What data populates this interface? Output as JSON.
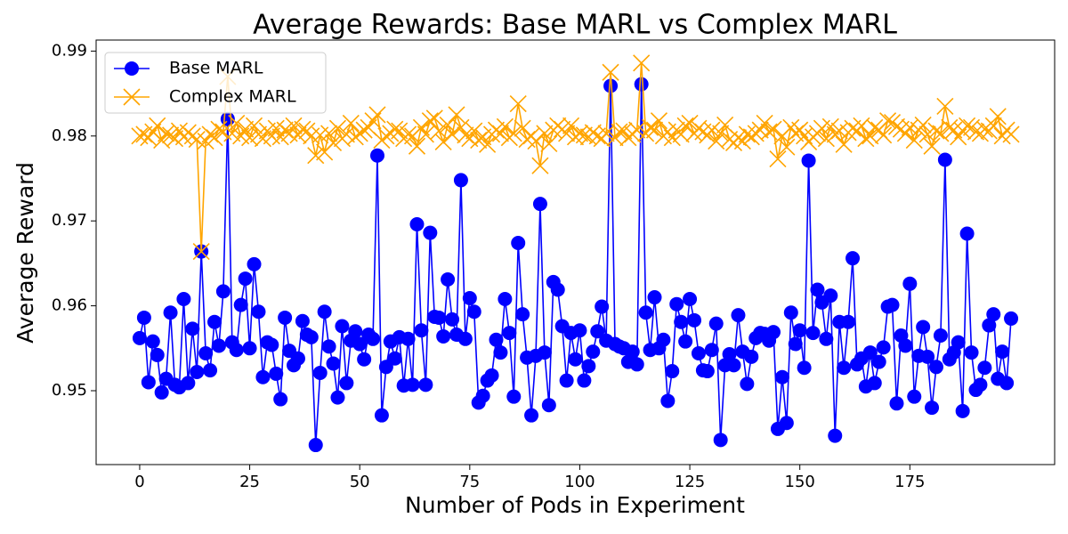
{
  "chart_data": {
    "type": "line",
    "title": "Average Rewards: Base MARL vs Complex MARL",
    "x_label": "Number of Pods in Experiment",
    "y_label": "Average Reward",
    "x": [
      0,
      1,
      2,
      3,
      4,
      5,
      6,
      7,
      8,
      9,
      10,
      11,
      12,
      13,
      14,
      15,
      16,
      17,
      18,
      19,
      20,
      21,
      22,
      23,
      24,
      25,
      26,
      27,
      28,
      29,
      30,
      31,
      32,
      33,
      34,
      35,
      36,
      37,
      38,
      39,
      40,
      41,
      42,
      43,
      44,
      45,
      46,
      47,
      48,
      49,
      50,
      51,
      52,
      53,
      54,
      55,
      56,
      57,
      58,
      59,
      60,
      61,
      62,
      63,
      64,
      65,
      66,
      67,
      68,
      69,
      70,
      71,
      72,
      73,
      74,
      75,
      76,
      77,
      78,
      79,
      80,
      81,
      82,
      83,
      84,
      85,
      86,
      87,
      88,
      89,
      90,
      91,
      92,
      93,
      94,
      95,
      96,
      97,
      98,
      99,
      100,
      101,
      102,
      103,
      104,
      105,
      106,
      107,
      108,
      109,
      110,
      111,
      112,
      113,
      114,
      115,
      116,
      117,
      118,
      119,
      120,
      121,
      122,
      123,
      124,
      125,
      126,
      127,
      128,
      129,
      130,
      131,
      132,
      133,
      134,
      135,
      136,
      137,
      138,
      139,
      140,
      141,
      142,
      143,
      144,
      145,
      146,
      147,
      148,
      149,
      150,
      151,
      152,
      153,
      154,
      155,
      156,
      157,
      158,
      159,
      160,
      161,
      162,
      163,
      164,
      165,
      166,
      167,
      168,
      169,
      170,
      171,
      172,
      173,
      174,
      175,
      176,
      177,
      178,
      179,
      180,
      181,
      182,
      183,
      184,
      185,
      186,
      187,
      188,
      189,
      190,
      191,
      192,
      193,
      194,
      195,
      196,
      197,
      198
    ],
    "series": [
      {
        "name": "Base MARL",
        "color": "#0000ff",
        "marker": "circle",
        "values": [
          0.9562,
          0.9586,
          0.951,
          0.9558,
          0.9542,
          0.9498,
          0.9514,
          0.9592,
          0.9507,
          0.9504,
          0.9608,
          0.9509,
          0.9573,
          0.9522,
          0.9664,
          0.9544,
          0.9524,
          0.9581,
          0.9553,
          0.9617,
          0.982,
          0.9557,
          0.9548,
          0.9601,
          0.9632,
          0.955,
          0.9649,
          0.9593,
          0.9516,
          0.9557,
          0.9554,
          0.952,
          0.949,
          0.9586,
          0.9547,
          0.953,
          0.9538,
          0.9582,
          0.9566,
          0.9563,
          0.9436,
          0.9521,
          0.9593,
          0.9552,
          0.9532,
          0.9492,
          0.9576,
          0.9509,
          0.9559,
          0.957,
          0.9555,
          0.9537,
          0.9566,
          0.9561,
          0.9777,
          0.9471,
          0.9528,
          0.9558,
          0.9538,
          0.9563,
          0.9506,
          0.9561,
          0.9507,
          0.9696,
          0.9571,
          0.9507,
          0.9686,
          0.9587,
          0.9586,
          0.9564,
          0.9631,
          0.9584,
          0.9566,
          0.9748,
          0.9561,
          0.9609,
          0.9593,
          0.9486,
          0.9494,
          0.9512,
          0.9518,
          0.956,
          0.9545,
          0.9608,
          0.9568,
          0.9493,
          0.9674,
          0.959,
          0.9539,
          0.9471,
          0.9541,
          0.972,
          0.9545,
          0.9483,
          0.9628,
          0.9619,
          0.9576,
          0.9512,
          0.9568,
          0.9537,
          0.9571,
          0.9512,
          0.9529,
          0.9546,
          0.957,
          0.9599,
          0.9559,
          0.9859,
          0.9555,
          0.9552,
          0.955,
          0.9534,
          0.9546,
          0.9531,
          0.9861,
          0.9592,
          0.9548,
          0.961,
          0.955,
          0.956,
          0.9488,
          0.9523,
          0.9602,
          0.9581,
          0.9558,
          0.9608,
          0.9583,
          0.9544,
          0.9524,
          0.9523,
          0.9548,
          0.9579,
          0.9442,
          0.953,
          0.9543,
          0.953,
          0.9589,
          0.9546,
          0.9508,
          0.954,
          0.9562,
          0.9568,
          0.9567,
          0.9559,
          0.9569,
          0.9455,
          0.9516,
          0.9462,
          0.9592,
          0.9555,
          0.9571,
          0.9527,
          0.9771,
          0.9568,
          0.9619,
          0.9604,
          0.9561,
          0.9612,
          0.9447,
          0.9581,
          0.9527,
          0.9581,
          0.9656,
          0.9531,
          0.9538,
          0.9505,
          0.9545,
          0.9509,
          0.9534,
          0.9551,
          0.9599,
          0.9601,
          0.9485,
          0.9565,
          0.9553,
          0.9626,
          0.9493,
          0.9541,
          0.9575,
          0.954,
          0.948,
          0.9528,
          0.9565,
          0.9772,
          0.9537,
          0.9545,
          0.9557,
          0.9476,
          0.9685,
          0.9545,
          0.9501,
          0.9507,
          0.9527,
          0.9577,
          0.959,
          0.9514,
          0.9546,
          0.9509,
          0.9585
        ]
      },
      {
        "name": "Complex MARL",
        "color": "#ffa500",
        "marker": "x",
        "values": [
          0.98,
          0.9802,
          0.9798,
          0.9805,
          0.9812,
          0.9795,
          0.9803,
          0.9801,
          0.9797,
          0.9806,
          0.9799,
          0.9804,
          0.98,
          0.9796,
          0.9664,
          0.9794,
          0.9802,
          0.9798,
          0.9808,
          0.9805,
          0.987,
          0.9803,
          0.9815,
          0.98,
          0.9808,
          0.9798,
          0.9812,
          0.9802,
          0.9797,
          0.9806,
          0.98,
          0.9809,
          0.9799,
          0.9807,
          0.9803,
          0.9812,
          0.9801,
          0.9808,
          0.9806,
          0.98,
          0.9777,
          0.9801,
          0.9781,
          0.9803,
          0.9792,
          0.9809,
          0.9797,
          0.9802,
          0.9815,
          0.9799,
          0.9803,
          0.9807,
          0.981,
          0.9818,
          0.9825,
          0.9795,
          0.98,
          0.9803,
          0.9808,
          0.9806,
          0.9797,
          0.9802,
          0.98,
          0.9788,
          0.981,
          0.9802,
          0.9818,
          0.9821,
          0.9806,
          0.9793,
          0.9813,
          0.9802,
          0.9825,
          0.981,
          0.9801,
          0.9797,
          0.9806,
          0.9795,
          0.9799,
          0.979,
          0.9802,
          0.9807,
          0.9803,
          0.9811,
          0.9798,
          0.9803,
          0.9838,
          0.9809,
          0.9796,
          0.98,
          0.9794,
          0.9765,
          0.9803,
          0.9791,
          0.9807,
          0.9812,
          0.9808,
          0.9803,
          0.9812,
          0.9799,
          0.9803,
          0.9801,
          0.9799,
          0.9804,
          0.98,
          0.9797,
          0.9803,
          0.9875,
          0.9798,
          0.9805,
          0.9806,
          0.9798,
          0.9802,
          0.9807,
          0.9886,
          0.9803,
          0.981,
          0.9807,
          0.9818,
          0.98,
          0.9805,
          0.9798,
          0.9807,
          0.9802,
          0.9812,
          0.9815,
          0.9803,
          0.9809,
          0.9805,
          0.9801,
          0.9807,
          0.9794,
          0.9803,
          0.9813,
          0.9796,
          0.9792,
          0.9798,
          0.9794,
          0.9802,
          0.9799,
          0.9803,
          0.9807,
          0.9815,
          0.9805,
          0.9808,
          0.9773,
          0.98,
          0.9787,
          0.981,
          0.9803,
          0.9807,
          0.98,
          0.9793,
          0.9799,
          0.9803,
          0.9809,
          0.9797,
          0.9811,
          0.9802,
          0.9806,
          0.979,
          0.9804,
          0.9809,
          0.9806,
          0.9812,
          0.9797,
          0.98,
          0.981,
          0.9807,
          0.9801,
          0.9818,
          0.9816,
          0.9811,
          0.9808,
          0.9803,
          0.981,
          0.9795,
          0.9807,
          0.9813,
          0.9802,
          0.9788,
          0.9806,
          0.9803,
          0.9835,
          0.981,
          0.9807,
          0.9799,
          0.9806,
          0.9812,
          0.981,
          0.9805,
          0.9803,
          0.9808,
          0.9806,
          0.9812,
          0.9823,
          0.98,
          0.9807,
          0.9802
        ]
      }
    ],
    "xlim": [
      -9.9,
      207.9
    ],
    "xticks": [
      0,
      25,
      50,
      75,
      100,
      125,
      150,
      175
    ],
    "ylim": [
      0.9413,
      0.9913
    ],
    "yticks": [
      0.95,
      0.96,
      0.97,
      0.98,
      0.99
    ],
    "grid": false,
    "legend": "upper left"
  }
}
